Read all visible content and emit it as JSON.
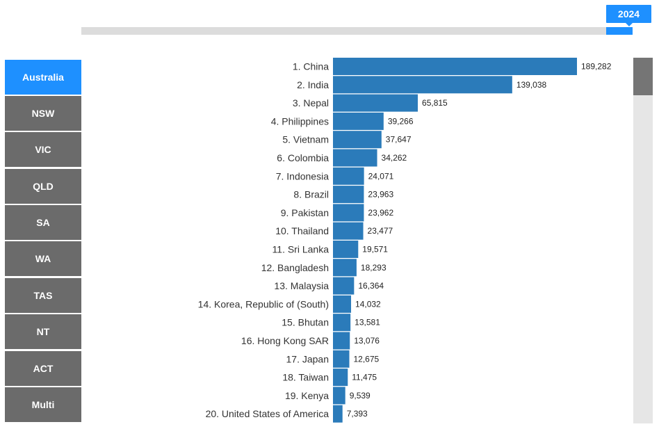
{
  "timeline": {
    "year": "2024",
    "progress": 1.0
  },
  "regions": {
    "items": [
      "Australia",
      "NSW",
      "VIC",
      "QLD",
      "SA",
      "WA",
      "TAS",
      "NT",
      "ACT",
      "Multi"
    ],
    "selected": "Australia"
  },
  "colors": {
    "accent": "#1e90ff",
    "bar": "#2b7bba",
    "button": "#6b6b6b",
    "track": "#dcdcdc"
  },
  "scrollbar": {
    "position": 0.0
  },
  "chart_data": {
    "type": "bar",
    "orientation": "horizontal",
    "title": "",
    "xlabel": "",
    "ylabel": "",
    "grid": false,
    "categories": [
      "1. China",
      "2. India",
      "3. Nepal",
      "4. Philippines",
      "5. Vietnam",
      "6. Colombia",
      "7. Indonesia",
      "8. Brazil",
      "9. Pakistan",
      "10. Thailand",
      "11. Sri Lanka",
      "12. Bangladesh",
      "13. Malaysia",
      "14. Korea, Republic of (South)",
      "15. Bhutan",
      "16. Hong Kong SAR",
      "17. Japan",
      "18. Taiwan",
      "19. Kenya",
      "20. United States of America"
    ],
    "values": [
      189282,
      139038,
      65815,
      39266,
      37647,
      34262,
      24071,
      23963,
      23962,
      23477,
      19571,
      18293,
      16364,
      14032,
      13581,
      13076,
      12675,
      11475,
      9539,
      7393
    ],
    "value_labels": [
      "189,282",
      "139,038",
      "65,815",
      "39,266",
      "37,647",
      "34,262",
      "24,071",
      "23,963",
      "23,962",
      "23,477",
      "19,571",
      "18,293",
      "16,364",
      "14,032",
      "13,581",
      "13,076",
      "12,675",
      "11,475",
      "9,539",
      "7,393"
    ]
  }
}
